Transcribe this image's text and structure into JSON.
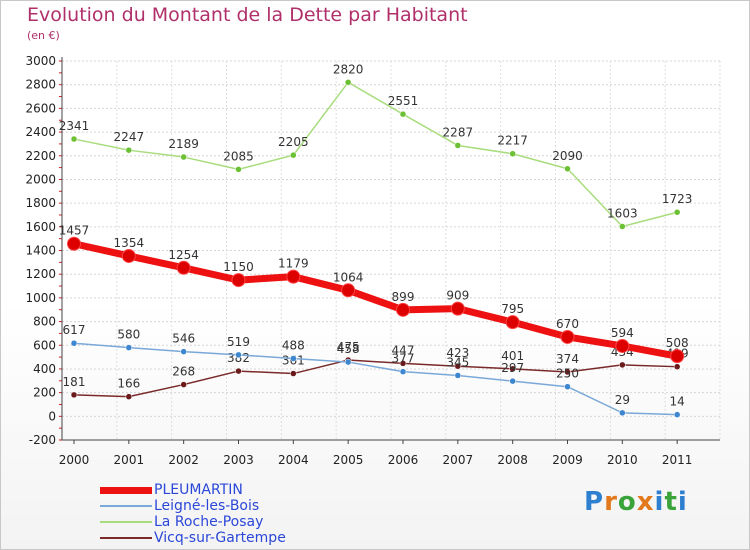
{
  "title": "Evolution du Montant de la Dette par Habitant",
  "subtitle": "(en €)",
  "logo": {
    "letters": [
      "P",
      "r",
      "o",
      "x",
      "i",
      "t",
      "i"
    ]
  },
  "chart_data": {
    "type": "line",
    "title": "Evolution du Montant de la Dette par Habitant",
    "ylabel": "(en €)",
    "xlabel": "",
    "ylim": [
      -200,
      3000
    ],
    "yticks": [
      -200,
      0,
      200,
      400,
      600,
      800,
      1000,
      1200,
      1400,
      1600,
      1800,
      2000,
      2200,
      2400,
      2600,
      2800,
      3000
    ],
    "x": [
      "2000",
      "2001",
      "2002",
      "2003",
      "2004",
      "2005",
      "2006",
      "2007",
      "2008",
      "2009",
      "2010",
      "2011"
    ],
    "grid": true,
    "legend_position": "bottom-left",
    "series": [
      {
        "name": "PLEUMARTIN",
        "color": "#ee1111",
        "point_color": "#dd0000",
        "width": 7,
        "values": [
          1457,
          1354,
          1254,
          1150,
          1179,
          1064,
          899,
          909,
          795,
          670,
          594,
          508
        ]
      },
      {
        "name": "Leigné-les-Bois",
        "color": "#7aa8d8",
        "point_color": "#3d86d0",
        "width": 1.5,
        "values": [
          617,
          580,
          546,
          519,
          488,
          458,
          377,
          345,
          297,
          250,
          29,
          14
        ]
      },
      {
        "name": "La Roche-Posay",
        "color": "#a8dc7c",
        "point_color": "#6cc034",
        "width": 1.5,
        "values": [
          2341,
          2247,
          2189,
          2085,
          2205,
          2820,
          2551,
          2287,
          2217,
          2090,
          1603,
          1723
        ]
      },
      {
        "name": "Vicq-sur-Gartempe",
        "color": "#7a2a2a",
        "point_color": "#6a1a1a",
        "width": 1.5,
        "values": [
          181,
          166,
          268,
          382,
          361,
          475,
          447,
          423,
          401,
          374,
          434,
          419
        ]
      }
    ],
    "data_labels": {
      "PLEUMARTIN": [
        "1457",
        "1354",
        "1254",
        "1150",
        "1179",
        "1064",
        "899",
        "909",
        "795",
        "670",
        "594",
        "508"
      ],
      "Leigné-les-Bois": [
        "617",
        "580",
        "546",
        "519",
        "488",
        "458",
        "377",
        "345",
        "297",
        "250",
        "29",
        "14"
      ],
      "La Roche-Posay": [
        "2341",
        "2247",
        "2189",
        "2085",
        "2205",
        "2820",
        "2551",
        "2287",
        "2217",
        "2090",
        "1603",
        "1723"
      ],
      "Vicq-sur-Gartempe": [
        "181",
        "166",
        "268",
        "382",
        "361",
        "475",
        "447",
        "423",
        "401",
        "374",
        "434",
        "419"
      ]
    }
  }
}
